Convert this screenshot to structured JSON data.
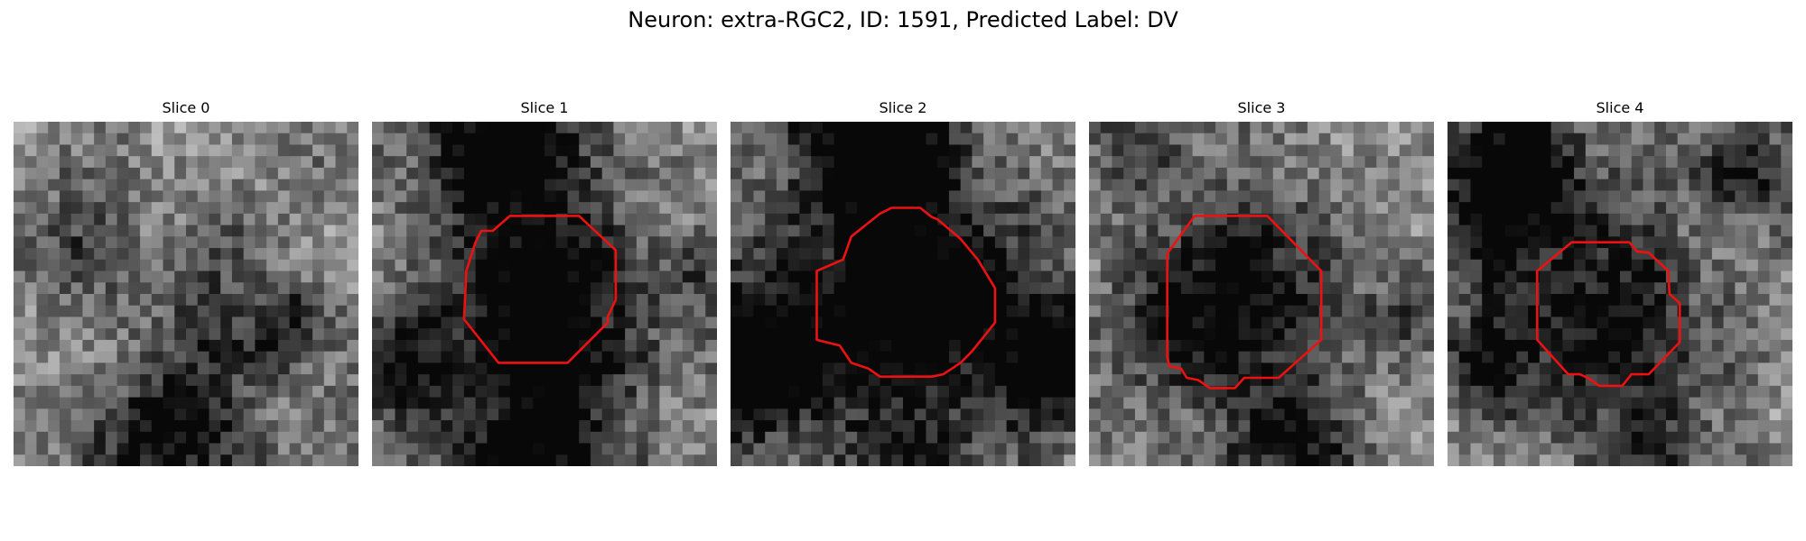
{
  "figure": {
    "title": "Neuron: extra-RGC2, ID: 1591, Predicted Label: DV",
    "contour_color": "#ee1111"
  },
  "panels": [
    {
      "title": "Slice 0",
      "has_contour": false
    },
    {
      "title": "Slice 1",
      "has_contour": true
    },
    {
      "title": "Slice 2",
      "has_contour": true
    },
    {
      "title": "Slice 3",
      "has_contour": true
    },
    {
      "title": "Slice 4",
      "has_contour": true
    }
  ]
}
